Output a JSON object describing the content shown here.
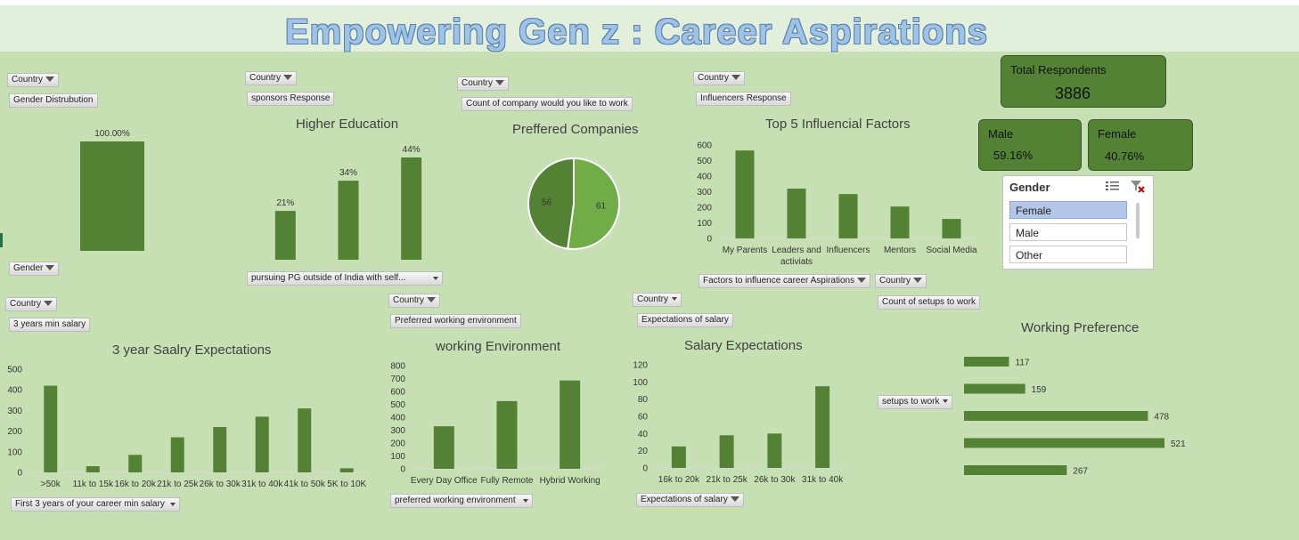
{
  "title": "Empowering Gen z : Career Aspirations",
  "buttons": {
    "country": "Country",
    "gender_distribution": "Gender Distrubution",
    "gender": "Gender",
    "sponsors_response": "sponsors Response",
    "pursuing_pg": "pursuing  PG outside of India with self...",
    "count_company": "Count of  company would you like to work",
    "influencers_response": "Influencers Response",
    "factors": "Factors to influence career Aspirations",
    "count_setups": "Count of setups to work",
    "setups_to_work": "setups to work",
    "min_salary_3yr": "3 years min salary",
    "first_3yr": "First 3 years of your career min salary",
    "preferred_env": "Preferred working environment",
    "preferred_env_field": "preferred  working environment",
    "expectations_salary": "Expectations of salary",
    "expectations_salary_field": "Expectations of salary"
  },
  "kpis": {
    "total_label": "Total Respondents",
    "total_value": "3886",
    "male_label": "Male",
    "male_value": "59.16%",
    "female_label": "Female",
    "female_value": "40.76%"
  },
  "slicer": {
    "title": "Gender",
    "items": [
      "Female",
      "Male",
      "Other"
    ],
    "selected": "Female"
  },
  "colors": {
    "bar": "#548235",
    "pie_a": "#548235",
    "pie_b": "#70ad47"
  },
  "chart_data": [
    {
      "id": "gender",
      "type": "bar",
      "title": "",
      "categories": [
        ""
      ],
      "values": [
        100.0
      ],
      "data_labels": [
        "100.00%"
      ],
      "ylim": [
        0,
        100
      ]
    },
    {
      "id": "higher",
      "type": "bar",
      "title": "Higher Education",
      "categories": [
        "",
        "",
        ""
      ],
      "values": [
        21,
        34,
        44
      ],
      "data_labels": [
        "21%",
        "34%",
        "44%"
      ],
      "ylim": [
        0,
        44
      ]
    },
    {
      "id": "companies",
      "type": "pie",
      "title": "Preffered Companies",
      "labels": [
        "",
        ""
      ],
      "values": [
        61,
        56
      ],
      "data_labels": [
        "61",
        "56"
      ]
    },
    {
      "id": "influencers",
      "type": "bar",
      "title": "Top 5 Influencial Factors",
      "categories": [
        "My Parents",
        "Leaders and activiats",
        "Influencers",
        "Mentors",
        "Social Media"
      ],
      "values": [
        565,
        320,
        285,
        205,
        125
      ],
      "yticks": [
        "0",
        "100",
        "200",
        "300",
        "400",
        "500",
        "600"
      ],
      "ylim": [
        0,
        600
      ]
    },
    {
      "id": "salary3",
      "type": "bar",
      "title": "3 year Saalry Expectations",
      "categories": [
        ">50k",
        "11k to 15k",
        "16k to 20k",
        "21k to 25k",
        "26k to 30k",
        "31k to 40k",
        "41k to 50k",
        "5K to 10K"
      ],
      "values": [
        420,
        30,
        85,
        170,
        220,
        270,
        310,
        20
      ],
      "yticks": [
        "0",
        "100",
        "200",
        "300",
        "400",
        "500"
      ],
      "ylim": [
        0,
        500
      ]
    },
    {
      "id": "workenv",
      "type": "bar",
      "title": "working Environment",
      "categories": [
        "Every Day Office",
        "Fully Remote",
        "Hybrid Working"
      ],
      "values": [
        330,
        525,
        685
      ],
      "yticks": [
        "0",
        "100",
        "200",
        "300",
        "400",
        "500",
        "600",
        "700",
        "800"
      ],
      "ylim": [
        0,
        800
      ]
    },
    {
      "id": "salaryexp",
      "type": "bar",
      "title": "Salary Expectations",
      "categories": [
        "16k to 20k",
        "21k to 25k",
        "26k to 30k",
        "31k to 40k"
      ],
      "values": [
        25,
        38,
        40,
        95
      ],
      "yticks": [
        "0",
        "20",
        "40",
        "60",
        "80",
        "100",
        "120"
      ],
      "ylim": [
        0,
        120
      ]
    },
    {
      "id": "workpref",
      "type": "bar_horizontal",
      "title": "Working Preference",
      "categories": [
        "",
        "",
        "",
        "",
        ""
      ],
      "values": [
        117,
        159,
        478,
        521,
        267
      ],
      "data_labels": [
        "117",
        "159",
        "478",
        "521",
        "267"
      ],
      "xlim": [
        0,
        521
      ]
    }
  ]
}
